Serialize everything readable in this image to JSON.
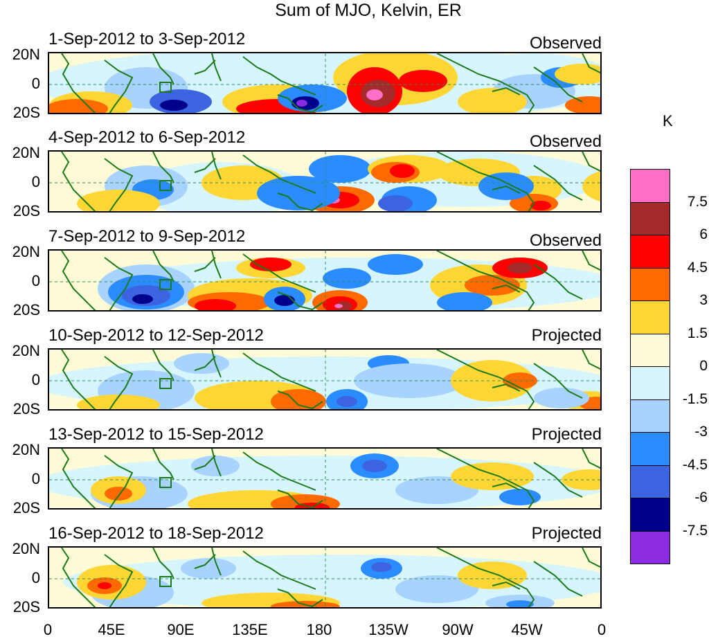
{
  "title": "Sum of MJO, Kelvin, ER",
  "panels": [
    {
      "date": "1-Sep-2012 to 3-Sep-2012",
      "kind": "Observed"
    },
    {
      "date": "4-Sep-2012 to 6-Sep-2012",
      "kind": "Observed"
    },
    {
      "date": "7-Sep-2012 to 9-Sep-2012",
      "kind": "Observed"
    },
    {
      "date": "10-Sep-2012 to 12-Sep-2012",
      "kind": "Projected"
    },
    {
      "date": "13-Sep-2012 to 15-Sep-2012",
      "kind": "Projected"
    },
    {
      "date": "16-Sep-2012 to 18-Sep-2012",
      "kind": "Projected"
    }
  ],
  "lat_labels": {
    "north": "20N",
    "equator": "0",
    "south": "20S"
  },
  "lon_labels": [
    "0",
    "45E",
    "90E",
    "135E",
    "180",
    "135W",
    "90W",
    "45W",
    "0"
  ],
  "colorbar": {
    "unit": "K",
    "labels": [
      "7.5",
      "6",
      "4.5",
      "3",
      "1.5",
      "0",
      "-1.5",
      "-3",
      "-4.5",
      "-6",
      "-7.5"
    ],
    "colors": [
      "#ff6ec7",
      "#a52a2a",
      "#ff0000",
      "#ff6a00",
      "#ffd633",
      "#fffbd7",
      "#d7f5ff",
      "#a8d3ff",
      "#2b8cff",
      "#3d64e0",
      "#00008b",
      "#8b2be2"
    ]
  },
  "colors": {
    "coast": "#1a7a1a",
    "background": "#ffffff"
  }
}
